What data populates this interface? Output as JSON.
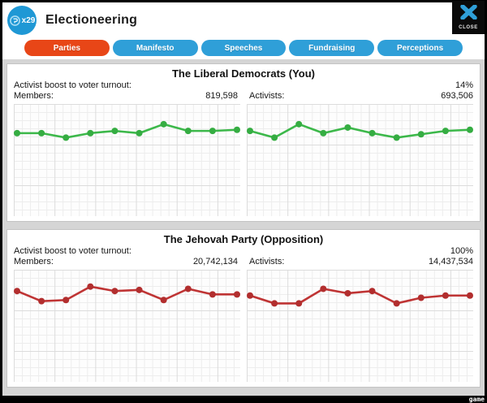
{
  "window": {
    "title": "Electioneering",
    "badge_count": "x29",
    "close_label": "CLOSE",
    "watermark": "game"
  },
  "colors": {
    "tab_active": "#e84617",
    "tab_inactive": "#2f9fd8",
    "badge_blue": "#1f98d5",
    "player_green": "#3cb84a",
    "opposition_red": "#bf3434"
  },
  "tabs": [
    {
      "label": "Parties",
      "active": true
    },
    {
      "label": "Manifesto",
      "active": false
    },
    {
      "label": "Speeches",
      "active": false
    },
    {
      "label": "Fundraising",
      "active": false
    },
    {
      "label": "Perceptions",
      "active": false
    }
  ],
  "panels": [
    {
      "title": "The Liberal Democrats (You)",
      "stats": {
        "boost_label": "Activist boost to voter turnout:",
        "boost_value": "14%",
        "members_label": "Members:",
        "members_value": "819,598",
        "activists_label": "Activists:",
        "activists_value": "693,506"
      }
    },
    {
      "title": "The Jehovah Party (Opposition)",
      "stats": {
        "boost_label": "Activist boost to voter turnout:",
        "boost_value": "100%",
        "members_label": "Members:",
        "members_value": "20,742,134",
        "activists_label": "Activists:",
        "activists_value": "14,437,534"
      }
    }
  ],
  "chart_data": [
    {
      "type": "line",
      "name": "liberal-democrats-members-trend",
      "color": "#3cb84a",
      "dot_color": "#35ad42",
      "x": [
        1,
        2,
        3,
        4,
        5,
        6,
        7,
        8,
        9,
        10
      ],
      "values": [
        74,
        74,
        70,
        74,
        76,
        74,
        82,
        76,
        76,
        77
      ],
      "ylim": [
        0,
        100
      ],
      "grid": true,
      "legend": "none",
      "title": "",
      "xlabel": "",
      "ylabel": ""
    },
    {
      "type": "line",
      "name": "liberal-democrats-activists-trend",
      "color": "#3cb84a",
      "dot_color": "#35ad42",
      "x": [
        1,
        2,
        3,
        4,
        5,
        6,
        7,
        8,
        9,
        10
      ],
      "values": [
        76,
        70,
        82,
        74,
        79,
        74,
        70,
        73,
        76,
        77
      ],
      "ylim": [
        0,
        100
      ],
      "grid": true,
      "legend": "none",
      "title": "",
      "xlabel": "",
      "ylabel": ""
    },
    {
      "type": "line",
      "name": "jehovah-party-members-trend",
      "color": "#bf3434",
      "dot_color": "#b22e2e",
      "x": [
        1,
        2,
        3,
        4,
        5,
        6,
        7,
        8,
        9,
        10
      ],
      "values": [
        81,
        72,
        73,
        85,
        81,
        82,
        73,
        83,
        78,
        78
      ],
      "ylim": [
        0,
        100
      ],
      "grid": true,
      "legend": "none",
      "title": "",
      "xlabel": "",
      "ylabel": ""
    },
    {
      "type": "line",
      "name": "jehovah-party-activists-trend",
      "color": "#bf3434",
      "dot_color": "#b22e2e",
      "x": [
        1,
        2,
        3,
        4,
        5,
        6,
        7,
        8,
        9,
        10
      ],
      "values": [
        77,
        70,
        70,
        83,
        79,
        81,
        70,
        75,
        77,
        77
      ],
      "ylim": [
        0,
        100
      ],
      "grid": true,
      "legend": "none",
      "title": "",
      "xlabel": "",
      "ylabel": ""
    }
  ]
}
